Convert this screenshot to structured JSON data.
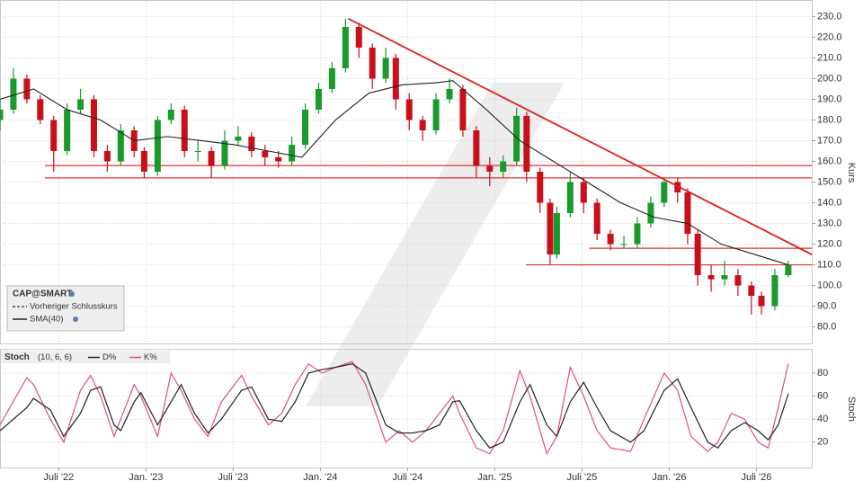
{
  "chart_data": [
    {
      "type": "candlestick",
      "legend_title": "CAP@SMART",
      "ylabel": "Kurs",
      "xlim": [
        0,
        242
      ],
      "ylim": [
        72,
        238
      ],
      "yticks": [
        {
          "value": 230,
          "label": "230.0"
        },
        {
          "value": 220,
          "label": "220.0"
        },
        {
          "value": 210,
          "label": "210.0"
        },
        {
          "value": 200,
          "label": "200.0"
        },
        {
          "value": 190,
          "label": "190.0"
        },
        {
          "value": 180,
          "label": "180.0"
        },
        {
          "value": 170,
          "label": "170.0"
        },
        {
          "value": 160,
          "label": "160.0"
        },
        {
          "value": 150,
          "label": "150.0"
        },
        {
          "value": 140,
          "label": "140.0"
        },
        {
          "value": 130,
          "label": "130.0"
        },
        {
          "value": 120,
          "label": "120.0"
        },
        {
          "value": 110,
          "label": "110.0"
        },
        {
          "value": 100,
          "label": "100.0"
        },
        {
          "value": 90,
          "label": "90.0"
        },
        {
          "value": 80,
          "label": "80.0"
        }
      ],
      "grid": true,
      "up_color": "#1a9a2a",
      "down_color": "#c8101a",
      "x": [
        0,
        4,
        8,
        12,
        16,
        20,
        24,
        28,
        32,
        36,
        40,
        43,
        47,
        51,
        55,
        59,
        63,
        67,
        71,
        75,
        79,
        83,
        87,
        91,
        95,
        99,
        103,
        107,
        111,
        115,
        118,
        122,
        126,
        130,
        134,
        138,
        142,
        146,
        150,
        154,
        157,
        161,
        164,
        166,
        170,
        174,
        178,
        182,
        186,
        190,
        194,
        198,
        202,
        205,
        208,
        212,
        216,
        220,
        224,
        227,
        231,
        235
      ],
      "open": [
        180,
        185,
        200,
        190,
        180,
        165,
        185,
        190,
        165,
        160,
        175,
        165,
        155,
        180,
        185,
        165,
        165,
        158,
        170,
        172,
        165,
        162,
        160,
        168,
        185,
        195,
        205,
        225,
        215,
        200,
        210,
        190,
        180,
        175,
        190,
        195,
        175,
        158,
        155,
        160,
        182,
        155,
        140,
        115,
        135,
        150,
        140,
        125,
        120,
        120,
        130,
        140,
        150,
        145,
        125,
        105,
        103,
        105,
        100,
        95,
        90,
        105
      ],
      "high": [
        190,
        205,
        202,
        192,
        182,
        188,
        195,
        192,
        168,
        178,
        177,
        167,
        182,
        188,
        187,
        170,
        167,
        175,
        177,
        174,
        168,
        165,
        172,
        188,
        198,
        208,
        229,
        227,
        217,
        215,
        212,
        193,
        182,
        193,
        200,
        197,
        177,
        162,
        163,
        186,
        184,
        157,
        142,
        138,
        155,
        152,
        142,
        127,
        124,
        133,
        143,
        152,
        152,
        147,
        127,
        110,
        112,
        108,
        102,
        97,
        108,
        112
      ],
      "low": [
        175,
        183,
        188,
        178,
        155,
        163,
        183,
        162,
        155,
        158,
        162,
        152,
        153,
        178,
        162,
        160,
        152,
        156,
        168,
        162,
        158,
        157,
        158,
        166,
        183,
        193,
        203,
        210,
        195,
        198,
        185,
        175,
        170,
        173,
        188,
        172,
        152,
        148,
        152,
        158,
        150,
        135,
        110,
        113,
        133,
        135,
        122,
        117,
        118,
        118,
        128,
        138,
        140,
        120,
        100,
        97,
        100,
        95,
        86,
        86,
        88,
        104
      ],
      "close": [
        185,
        200,
        190,
        180,
        165,
        185,
        190,
        165,
        160,
        175,
        165,
        155,
        180,
        185,
        165,
        165,
        158,
        170,
        172,
        165,
        162,
        160,
        168,
        185,
        195,
        205,
        225,
        215,
        200,
        210,
        190,
        180,
        175,
        190,
        195,
        175,
        158,
        155,
        160,
        182,
        155,
        140,
        115,
        135,
        150,
        140,
        125,
        120,
        120,
        130,
        140,
        150,
        145,
        125,
        105,
        103,
        105,
        100,
        95,
        90,
        105,
        110
      ],
      "series": [
        {
          "name": "Vorheriger Schlusskurs",
          "color": "#333333",
          "dashed": true
        },
        {
          "name": "SMA(40)",
          "color": "#222222",
          "x": [
            0,
            10,
            20,
            30,
            40,
            50,
            60,
            70,
            80,
            90,
            100,
            110,
            120,
            130,
            135,
            145,
            155,
            165,
            175,
            185,
            195,
            205,
            215,
            225,
            235
          ],
          "values": [
            190,
            195,
            185,
            180,
            170,
            172,
            170,
            168,
            165,
            162,
            180,
            193,
            197,
            198,
            199,
            185,
            170,
            160,
            150,
            140,
            133,
            130,
            120,
            115,
            110
          ]
        }
      ],
      "trendline": {
        "color": "#e02020",
        "x": [
          103.8,
          242
        ],
        "values": [
          229,
          115
        ]
      },
      "levels": [
        {
          "value": 158,
          "from": 13.4
        },
        {
          "value": 152,
          "from": 13.4
        },
        {
          "value": 118,
          "from": 175.6
        },
        {
          "value": 110,
          "from": 156.8
        }
      ],
      "level_color": "#e03030"
    },
    {
      "type": "line",
      "title": "Stoch",
      "subtitle": "(10, 6, 6)",
      "ylabel": "Stoch",
      "xlim": [
        0,
        242
      ],
      "ylim": [
        -2,
        94
      ],
      "yticks": [
        20,
        40,
        60,
        80
      ],
      "grid": true,
      "xticks": [
        {
          "value": 17.5,
          "label": "Juli '22"
        },
        {
          "value": 43.5,
          "label": "Jan. '23"
        },
        {
          "value": 69.5,
          "label": "Juli '23"
        },
        {
          "value": 95.5,
          "label": "Jan. '24"
        },
        {
          "value": 121.5,
          "label": "Juli '24"
        },
        {
          "value": 147.5,
          "label": "Jan. '25"
        },
        {
          "value": 173.5,
          "label": "Juli '25"
        },
        {
          "value": 199.5,
          "label": "Jan. '26"
        },
        {
          "value": 225.5,
          "label": "Juli '26"
        }
      ],
      "x": [
        0,
        8,
        10,
        15,
        19,
        24,
        27,
        30,
        34,
        36,
        40,
        42,
        47,
        51,
        54,
        58,
        62,
        66,
        72,
        75,
        80,
        84,
        88,
        92,
        96,
        100,
        105,
        109,
        115,
        119,
        123,
        127,
        131,
        135,
        137,
        142,
        146,
        150,
        155,
        158,
        163,
        166,
        170,
        174,
        178,
        182,
        188,
        192,
        198,
        202,
        206,
        211,
        214,
        218,
        222,
        226,
        229,
        232,
        235
      ],
      "series": [
        {
          "name": "D%",
          "color": "#222222",
          "values": [
            30,
            50,
            58,
            48,
            25,
            45,
            65,
            68,
            35,
            30,
            55,
            63,
            35,
            55,
            70,
            45,
            28,
            40,
            65,
            68,
            40,
            38,
            55,
            80,
            83,
            85,
            88,
            80,
            35,
            28,
            28,
            30,
            35,
            55,
            56,
            30,
            15,
            20,
            55,
            70,
            35,
            25,
            55,
            72,
            50,
            30,
            20,
            30,
            65,
            75,
            50,
            20,
            15,
            30,
            37,
            30,
            22,
            35,
            62
          ]
        },
        {
          "name": "K%",
          "color": "#e0507a",
          "values": [
            35,
            76,
            70,
            40,
            20,
            65,
            78,
            60,
            25,
            40,
            70,
            60,
            25,
            80,
            65,
            40,
            25,
            55,
            78,
            60,
            35,
            45,
            70,
            88,
            80,
            85,
            90,
            70,
            20,
            30,
            20,
            30,
            45,
            60,
            45,
            15,
            10,
            30,
            82,
            60,
            10,
            25,
            85,
            60,
            30,
            15,
            12,
            40,
            80,
            65,
            25,
            12,
            20,
            45,
            40,
            20,
            15,
            50,
            88
          ]
        }
      ]
    }
  ]
}
